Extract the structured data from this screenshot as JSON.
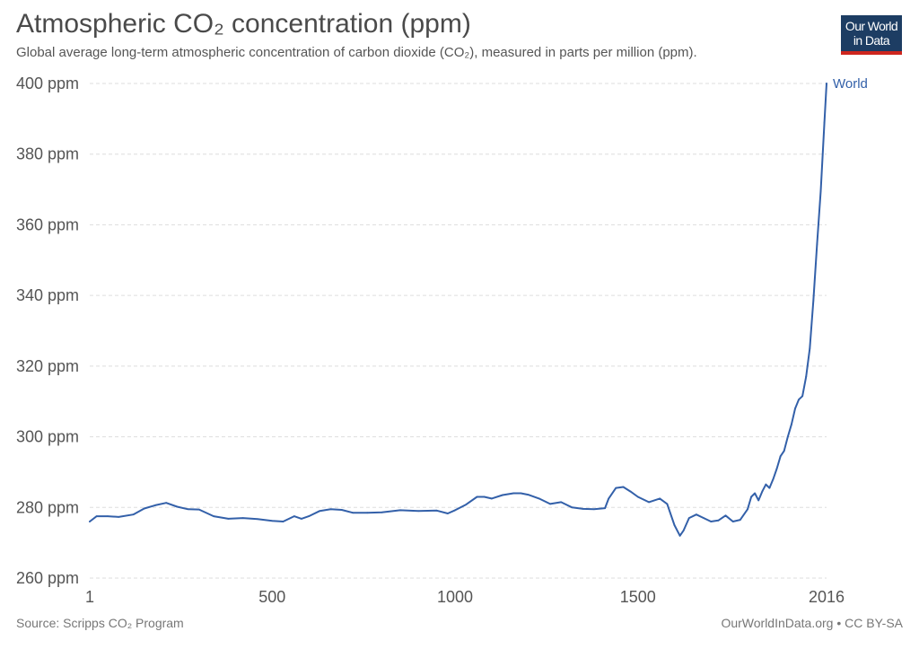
{
  "header": {
    "title": "Atmospheric CO₂ concentration (ppm)",
    "subtitle": "Global average long-term atmospheric concentration of carbon dioxide (CO₂), measured in parts per million (ppm)."
  },
  "logo": {
    "line1": "Our World",
    "line2": "in Data",
    "background": "#1d3d63",
    "accent": "#ce261e"
  },
  "footer": {
    "source": "Source: Scripps CO₂ Program",
    "license": "OurWorldInData.org • CC BY-SA"
  },
  "chart_data": {
    "type": "line",
    "title": "Atmospheric CO₂ concentration (ppm)",
    "subtitle": "Global average long-term atmospheric concentration of carbon dioxide (CO₂), measured in parts per million (ppm).",
    "xlabel": "",
    "ylabel": "",
    "xlim": [
      1,
      2016
    ],
    "ylim": [
      260,
      400
    ],
    "x_ticks": [
      1,
      500,
      1000,
      1500,
      2016
    ],
    "y_ticks": [
      260,
      280,
      300,
      320,
      340,
      360,
      380,
      400
    ],
    "y_tick_labels": [
      "260 ppm",
      "280 ppm",
      "300 ppm",
      "320 ppm",
      "340 ppm",
      "360 ppm",
      "380 ppm",
      "400 ppm"
    ],
    "grid": "horizontal dashed",
    "legend": "inline label at line end (right)",
    "series": [
      {
        "name": "World",
        "color": "#3360a9",
        "x": [
          1,
          20,
          50,
          80,
          120,
          150,
          180,
          210,
          240,
          270,
          300,
          340,
          380,
          420,
          460,
          500,
          530,
          560,
          580,
          600,
          630,
          660,
          690,
          720,
          760,
          800,
          850,
          900,
          950,
          980,
          1000,
          1030,
          1060,
          1080,
          1100,
          1130,
          1160,
          1180,
          1200,
          1230,
          1260,
          1290,
          1320,
          1350,
          1380,
          1410,
          1420,
          1440,
          1460,
          1480,
          1500,
          1530,
          1560,
          1580,
          1600,
          1615,
          1625,
          1640,
          1660,
          1680,
          1700,
          1720,
          1740,
          1760,
          1780,
          1800,
          1810,
          1820,
          1830,
          1840,
          1850,
          1860,
          1870,
          1880,
          1890,
          1900,
          1910,
          1920,
          1930,
          1940,
          1950,
          1960,
          1970,
          1980,
          1990,
          2000,
          2010,
          2016
        ],
        "values": [
          276,
          277.5,
          277.5,
          277.3,
          278,
          279.7,
          280.6,
          281.3,
          280.2,
          279.5,
          279.4,
          277.5,
          276.8,
          277,
          276.7,
          276.2,
          276,
          277.5,
          276.8,
          277.5,
          279,
          279.5,
          279.3,
          278.5,
          278.5,
          278.6,
          279.2,
          279,
          279.1,
          278.3,
          279.2,
          280.8,
          283,
          283,
          282.5,
          283.5,
          284,
          284,
          283.6,
          282.5,
          281,
          281.5,
          280,
          279.6,
          279.5,
          279.8,
          282.5,
          285.5,
          285.8,
          284.5,
          283,
          281.5,
          282.5,
          281,
          275,
          272,
          273.5,
          277,
          278,
          277,
          276,
          276.3,
          277.7,
          276,
          276.5,
          279.5,
          283,
          284,
          282,
          284.5,
          286.5,
          285.5,
          288,
          291,
          294.5,
          296,
          300,
          303.5,
          308,
          310.5,
          311.5,
          317,
          325,
          338.5,
          354.5,
          369.5,
          389,
          400
        ]
      }
    ]
  }
}
